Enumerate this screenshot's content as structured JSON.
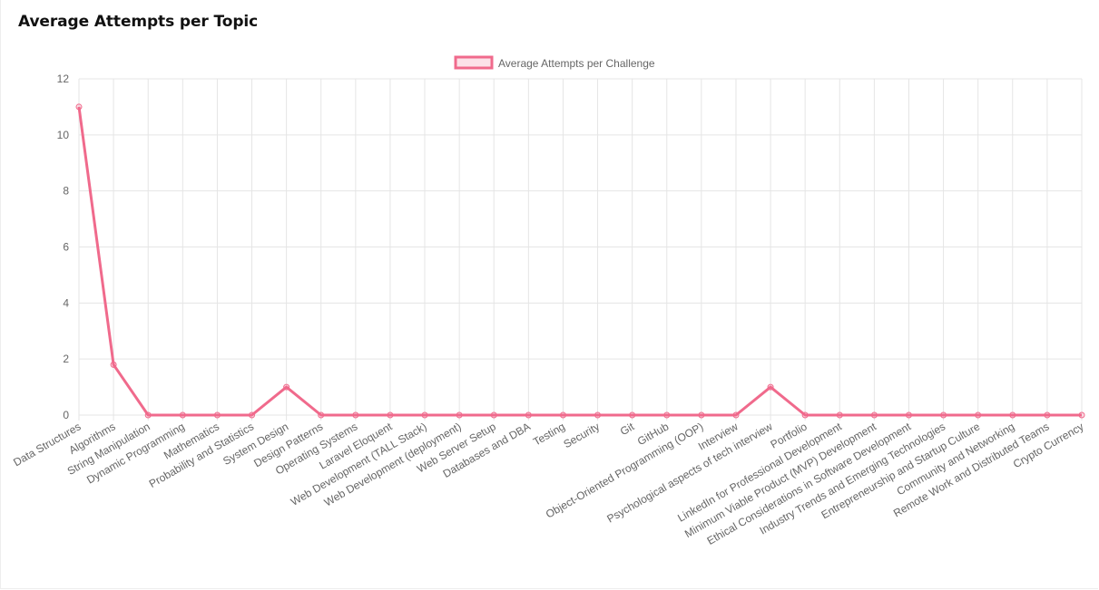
{
  "card": {
    "title": "Average Attempts per Topic"
  },
  "chart_data": {
    "type": "line",
    "title": "",
    "xlabel": "",
    "ylabel": "",
    "ylim": [
      0,
      12
    ],
    "yticks": [
      0,
      2,
      4,
      6,
      8,
      10,
      12
    ],
    "grid": true,
    "legend_position": "top",
    "categories": [
      "Data Structures",
      "Algorithms",
      "String Manipulation",
      "Dynamic Programming",
      "Mathematics",
      "Probability and Statistics",
      "System Design",
      "Design Patterns",
      "Operating Systems",
      "Laravel Eloquent",
      "Web Development (TALL Stack)",
      "Web Development (deployment)",
      "Web Server Setup",
      "Databases and DBA",
      "Testing",
      "Security",
      "Git",
      "GitHub",
      "Object-Oriented Programming (OOP)",
      "Interview",
      "Psychological aspects of tech interview",
      "Portfolio",
      "LinkedIn for Professional Development",
      "Minimum Viable Product (MVP) Development",
      "Ethical Considerations in Software Development",
      "Industry Trends and Emerging Technologies",
      "Entrepreneurship and Startup Culture",
      "Community and Networking",
      "Remote Work and Distributed Teams",
      "Crypto Currency"
    ],
    "series": [
      {
        "name": "Average Attempts per Challenge",
        "color": "#f06a8c",
        "fill": "rgba(240,106,140,0.2)",
        "values": [
          11,
          1.8,
          0,
          0,
          0,
          0,
          1,
          0,
          0,
          0,
          0,
          0,
          0,
          0,
          0,
          0,
          0,
          0,
          0,
          0,
          1,
          0,
          0,
          0,
          0,
          0,
          0,
          0,
          0,
          0
        ]
      }
    ]
  }
}
